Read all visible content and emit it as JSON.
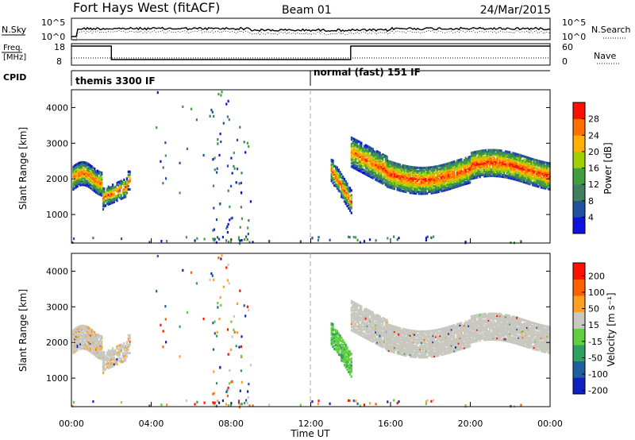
{
  "header": {
    "station": "Fort Hays West (fitACF)",
    "beam": "Beam 01",
    "date": "24/Mar/2015"
  },
  "strip": {
    "nsky_label": "N.Sky",
    "nsearch_label": "N.Search",
    "noise_ticks": [
      "10^5",
      "10^0"
    ],
    "freq_label_line1": "Freq.",
    "freq_label_line2": "[MHz]",
    "freq_ticks": [
      "18",
      "8"
    ],
    "nave_label": "Nave",
    "nave_ticks": [
      "60",
      "0"
    ],
    "cpid_label": "CPID",
    "cpid_segments": [
      {
        "label": "themis 3300 IF",
        "start_hour": 0,
        "end_hour": 12
      },
      {
        "label": "normal (fast) 151 IF",
        "start_hour": 12,
        "end_hour": 24
      }
    ],
    "frequency_steps": [
      {
        "start_hour": 0,
        "end_hour": 2,
        "value": "high"
      },
      {
        "start_hour": 2,
        "end_hour": 14,
        "value": "low"
      },
      {
        "start_hour": 14,
        "end_hour": 24,
        "value": "high"
      }
    ]
  },
  "chart_data": [
    {
      "type": "heatmap",
      "name": "power",
      "ylabel": "Slant Range [km]",
      "ylim": [
        200,
        4500
      ],
      "xlim": [
        0,
        24
      ],
      "y_ticks": [
        "1000",
        "2000",
        "3000",
        "4000"
      ],
      "colorbar_label": "Power [dB]",
      "colorbar_ticks": [
        "4",
        "8",
        "12",
        "16",
        "20",
        "24",
        "28"
      ],
      "colorbar_colors": [
        "#1010e0",
        "#2050a0",
        "#408060",
        "#40a040",
        "#a0d000",
        "#ffb000",
        "#ff7000",
        "#ff1000"
      ],
      "range": [
        0,
        30
      ]
    },
    {
      "type": "heatmap",
      "name": "velocity",
      "ylabel": "Slant Range [km]",
      "ylim": [
        200,
        4500
      ],
      "xlim": [
        0,
        24
      ],
      "y_ticks": [
        "1000",
        "2000",
        "3000",
        "4000"
      ],
      "colorbar_label": "Velocity [m s⁻¹]",
      "colorbar_ticks": [
        "200",
        "100",
        "50",
        "15",
        "-15",
        "-50",
        "-100",
        "-200"
      ],
      "colorbar_colors": [
        "#1020c0",
        "#2060a0",
        "#30a060",
        "#60d040",
        "#c8c8c0",
        "#ffa020",
        "#ff6000",
        "#ff1000"
      ]
    }
  ],
  "x_axis": {
    "label": "Time UT",
    "ticks": [
      "00:00",
      "04:00",
      "08:00",
      "12:00",
      "16:00",
      "20:00",
      "00:00"
    ]
  }
}
